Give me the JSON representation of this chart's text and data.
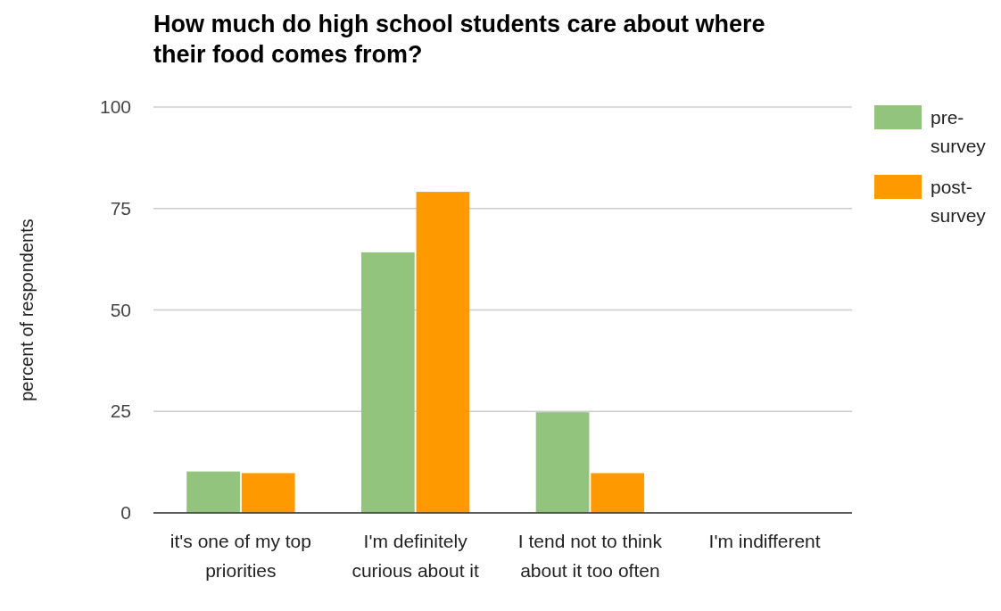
{
  "chart_data": {
    "type": "bar",
    "title": "How much do high school students care about where their food comes from?",
    "ylabel": "percent of respondents",
    "categories": [
      "it's one of my top priorities",
      "I'm definitely curious about it",
      "I tend not to think about it too often",
      "I'm indifferent"
    ],
    "series": [
      {
        "name": "pre-survey",
        "color": "#93c47d",
        "values": [
          10.2,
          64.2,
          24.8,
          0
        ]
      },
      {
        "name": "post-survey",
        "color": "#ff9900",
        "values": [
          9.8,
          79.1,
          9.8,
          0
        ]
      }
    ],
    "ylim": [
      0,
      100
    ],
    "yticks": [
      0,
      25,
      50,
      75,
      100
    ],
    "grid": true,
    "legend": "right"
  }
}
